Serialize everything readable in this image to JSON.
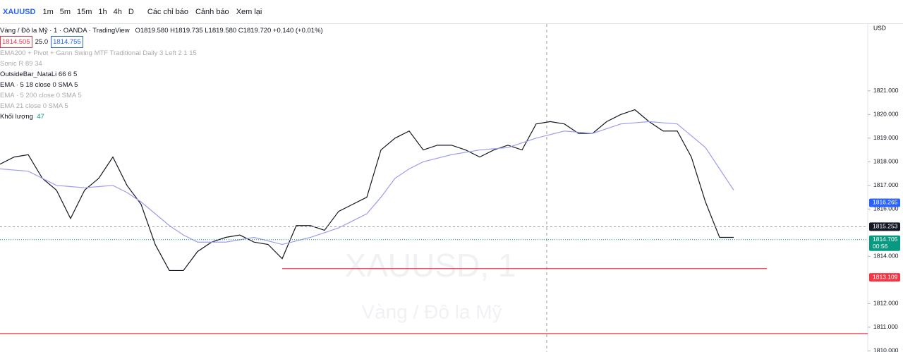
{
  "toolbar": {
    "symbol": "XAUUSD",
    "intervals": [
      "1m",
      "5m",
      "15m",
      "1h",
      "4h",
      "D"
    ],
    "indicators": "Các chỉ báo",
    "alerts": "Cảnh báo",
    "replay": "Xem lại"
  },
  "legend": {
    "title": "Vàng / Đô la Mỹ · 1 · OANDA · TradingView",
    "ohlc": "O1819.580 H1819.735 L1819.580 C1819.720 +0.140 (+0.01%)",
    "bid": "1814.505",
    "spread": "25.0",
    "ask": "1814.755",
    "studies": [
      "EMA200 + Pivot + Gann Swing MTF Traditional Daily 3 Left 2 1 15",
      "Sonic R 89 34",
      "OutsideBar_NataLi 66 6 5",
      "EMA · 5 18 close 0 SMA 5",
      "EMA · 5 200 close 0 SMA 5",
      "EMA 21 close 0 SMA 5"
    ],
    "volume": "Khối lượng",
    "volume_value": "47"
  },
  "watermark": {
    "symbol": "XAUUSD, 1",
    "name": "Vàng / Đô la Mỹ"
  },
  "currency": "USD",
  "chart_data": {
    "type": "line",
    "categories": [
      null,
      null,
      null,
      null,
      null,
      null,
      null,
      null,
      null,
      null,
      null,
      null,
      null,
      null,
      null,
      null,
      null,
      null,
      null,
      null,
      null,
      null,
      null,
      null,
      null,
      null,
      null,
      null,
      null,
      null,
      null,
      null,
      null,
      null,
      null,
      null,
      null,
      null,
      null,
      null,
      null,
      null,
      null,
      null,
      null,
      null,
      null,
      null,
      null,
      null,
      null,
      null,
      null
    ],
    "series": [
      {
        "name": "XAUUSD",
        "color": "#131722",
        "values": [
          1817.9,
          1818.2,
          1818.3,
          1817.3,
          1816.8,
          1815.6,
          1816.8,
          1817.3,
          1818.2,
          1817.0,
          1816.2,
          1814.5,
          1813.4,
          1813.4,
          1814.2,
          1814.6,
          1814.8,
          1814.9,
          1814.6,
          1814.5,
          1813.9,
          1815.3,
          1815.3,
          1815.1,
          1815.9,
          1816.2,
          1816.5,
          1818.5,
          1819.0,
          1819.3,
          1818.5,
          1818.7,
          1818.7,
          1818.5,
          1818.2,
          1818.5,
          1818.7,
          1818.5,
          1819.6,
          1819.7,
          1819.6,
          1819.2,
          1819.2,
          1819.7,
          1820.0,
          1820.2,
          1819.7,
          1819.3,
          1819.3,
          1818.2,
          1816.3,
          1814.8,
          1814.8
        ]
      },
      {
        "name": "EMA",
        "color": "#9c9cf0",
        "values": [
          1817.7,
          1817.65,
          1817.6,
          1817.3,
          1817.0,
          1816.95,
          1816.9,
          1816.95,
          1817.0,
          1816.7,
          1816.3,
          1815.8,
          1815.3,
          1814.9,
          1814.6,
          1814.6,
          1814.6,
          1814.7,
          1814.8,
          1814.65,
          1814.5,
          1814.65,
          1814.8,
          1815.0,
          1815.2,
          1815.5,
          1815.8,
          1816.5,
          1817.3,
          1817.7,
          1818.0,
          1818.15,
          1818.3,
          1818.4,
          1818.5,
          1818.55,
          1818.6,
          1818.8,
          1819.0,
          1819.15,
          1819.3,
          1819.25,
          1819.2,
          1819.4,
          1819.6,
          1819.65,
          1819.7,
          1819.65,
          1819.6,
          1819.1,
          1818.6,
          1817.7,
          1816.8
        ]
      }
    ],
    "ylim": [
      1809.95,
      1823.83
    ],
    "yticks": [
      {
        "value": 1810,
        "label": "1810.000"
      },
      {
        "value": 1811,
        "label": "1811.000"
      },
      {
        "value": 1812,
        "label": "1812.000"
      },
      {
        "value": 1814,
        "label": "1814.000"
      },
      {
        "value": 1816,
        "label": "1816.000"
      },
      {
        "value": 1817,
        "label": "1817.000"
      },
      {
        "value": 1818,
        "label": "1818.000"
      },
      {
        "value": 1819,
        "label": "1819.000"
      },
      {
        "value": 1820,
        "label": "1820.000"
      },
      {
        "value": 1821,
        "label": "1821.000"
      }
    ],
    "levels": [
      {
        "value": 1813.48,
        "color": "#f23645"
      },
      {
        "value": 1810.73,
        "color": "#f23645"
      }
    ],
    "price_labels": [
      {
        "value": 1816.265,
        "color": "#2962ff"
      },
      {
        "value": 1815.253,
        "color": "#131722"
      },
      {
        "value": 1814.705,
        "color": "#089981",
        "countdown": "00:56"
      },
      {
        "value": 1813.109,
        "color": "#f23645"
      }
    ]
  }
}
